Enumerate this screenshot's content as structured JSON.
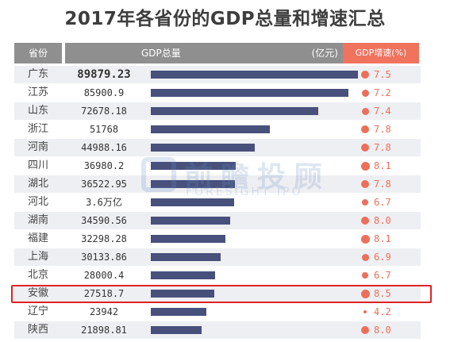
{
  "title": "2017年各省份的GDP总量和增速汇总",
  "watermark": {
    "cn": "前瞻投顾",
    "en": "FORESIGHT IPO"
  },
  "chart_data": {
    "type": "table",
    "title": "2017年各省份的GDP总量和增速汇总",
    "columns": [
      "省份",
      "GDP总量",
      "(亿元)",
      "GDP增速(%)"
    ],
    "highlighted_row": "安徽",
    "gdp_color": "#48517c",
    "growth_color": "#ec6f5b",
    "highlight_color": "#e02222",
    "rows": [
      {
        "province": "广东",
        "gdp_label": "89879.23",
        "gdp": 89879.23,
        "growth": "7.5"
      },
      {
        "province": "江苏",
        "gdp_label": "85900.9",
        "gdp": 85900.9,
        "growth": "7.2"
      },
      {
        "province": "山东",
        "gdp_label": "72678.18",
        "gdp": 72678.18,
        "growth": "7.4"
      },
      {
        "province": "浙江",
        "gdp_label": "51768",
        "gdp": 51768,
        "growth": "7.8"
      },
      {
        "province": "河南",
        "gdp_label": "44988.16",
        "gdp": 44988.16,
        "growth": "7.8"
      },
      {
        "province": "四川",
        "gdp_label": "36980.2",
        "gdp": 36980.2,
        "growth": "8.1"
      },
      {
        "province": "湖北",
        "gdp_label": "36522.95",
        "gdp": 36522.95,
        "growth": "7.8"
      },
      {
        "province": "河北",
        "gdp_label": "3.6万亿",
        "gdp": 36000,
        "growth": "6.7"
      },
      {
        "province": "湖南",
        "gdp_label": "34590.56",
        "gdp": 34590.56,
        "growth": "8.0"
      },
      {
        "province": "福建",
        "gdp_label": "32298.28",
        "gdp": 32298.28,
        "growth": "8.1"
      },
      {
        "province": "上海",
        "gdp_label": "30133.86",
        "gdp": 30133.86,
        "growth": "6.9"
      },
      {
        "province": "北京",
        "gdp_label": "28000.4",
        "gdp": 28000.4,
        "growth": "6.7"
      },
      {
        "province": "安徽",
        "gdp_label": "27518.7",
        "gdp": 27518.7,
        "growth": "8.5"
      },
      {
        "province": "辽宁",
        "gdp_label": "23942",
        "gdp": 23942,
        "growth": "4.2"
      },
      {
        "province": "陕西",
        "gdp_label": "21898.81",
        "gdp": 21898.81,
        "growth": "8.0"
      }
    ]
  }
}
